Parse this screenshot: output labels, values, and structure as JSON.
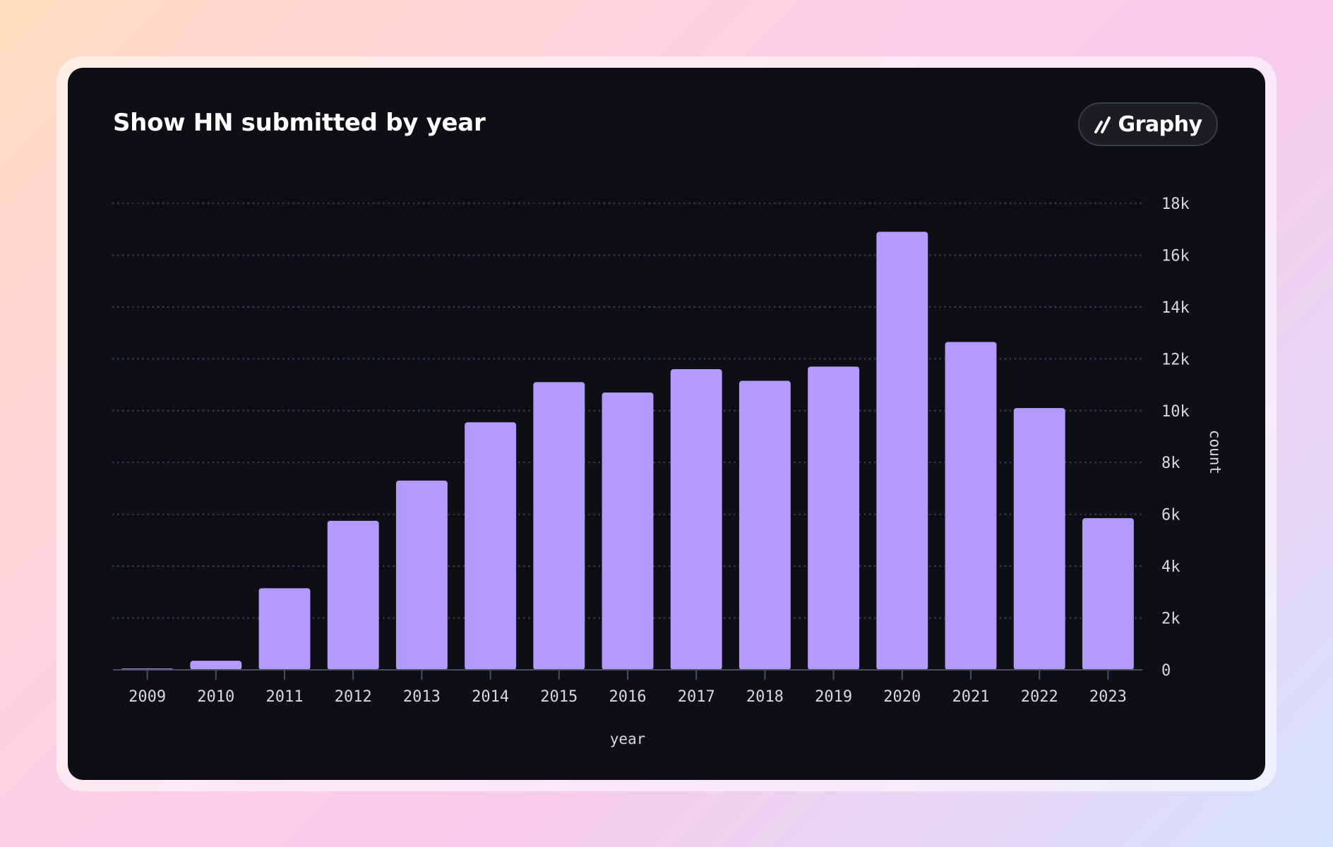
{
  "colors": {
    "bar": "#b39afd",
    "card_background": "#0d0f14",
    "grid": "#3a3c52",
    "axis": "#4a4c60",
    "text": "#d8d9de"
  },
  "badge": {
    "icon": "graphy-logo-icon",
    "label": "Graphy"
  },
  "chart_data": {
    "type": "bar",
    "title": "Show HN submitted by year",
    "xlabel": "year",
    "ylabel": "count",
    "categories": [
      "2009",
      "2010",
      "2011",
      "2012",
      "2013",
      "2014",
      "2015",
      "2016",
      "2017",
      "2018",
      "2019",
      "2020",
      "2021",
      "2022",
      "2023"
    ],
    "values": [
      50,
      350,
      3150,
      5750,
      7300,
      9550,
      11100,
      10700,
      11600,
      11150,
      11700,
      16900,
      12650,
      10100,
      5850
    ],
    "ylim": [
      0,
      18000
    ],
    "yticks": [
      0,
      2000,
      4000,
      6000,
      8000,
      10000,
      12000,
      14000,
      16000,
      18000
    ],
    "ytick_labels": [
      "0",
      "2k",
      "4k",
      "6k",
      "8k",
      "10k",
      "12k",
      "14k",
      "16k",
      "18k"
    ],
    "y_axis_position": "right",
    "grid": true,
    "grid_style": "dotted",
    "legend": "none"
  }
}
